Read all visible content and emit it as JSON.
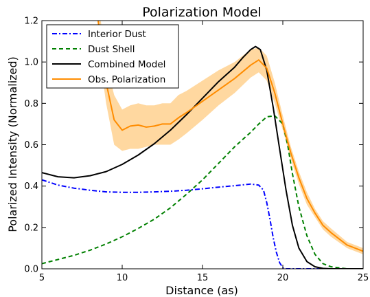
{
  "chart_data": {
    "type": "line",
    "title": "Polarization Model",
    "xlabel": "Distance (as)",
    "ylabel": "Polarized Intensity (Normalized)",
    "xlim": [
      5,
      25
    ],
    "ylim": [
      0,
      1.2
    ],
    "xticks": [
      5,
      10,
      15,
      20,
      25
    ],
    "yticks": [
      0.0,
      0.2,
      0.4,
      0.6,
      0.8,
      1.0,
      1.2
    ],
    "xtick_labels": [
      "5",
      "10",
      "15",
      "20",
      "25"
    ],
    "ytick_labels": [
      "0.0",
      "0.2",
      "0.4",
      "0.6",
      "0.8",
      "1.0",
      "1.2"
    ],
    "grid": false,
    "legend_position": "top-left",
    "series": [
      {
        "name": "Interior Dust",
        "color": "#0000ff",
        "style": "dashdot",
        "x": [
          5,
          6,
          7,
          8,
          9,
          10,
          11,
          12,
          13,
          14,
          15,
          16,
          17,
          18,
          18.5,
          18.8,
          19.0,
          19.2,
          19.4,
          19.6,
          19.8,
          20.0,
          20.2,
          20.5,
          21,
          22,
          23,
          24,
          25
        ],
        "y": [
          0.43,
          0.405,
          0.39,
          0.38,
          0.372,
          0.37,
          0.37,
          0.372,
          0.375,
          0.38,
          0.387,
          0.395,
          0.402,
          0.41,
          0.405,
          0.38,
          0.32,
          0.24,
          0.15,
          0.08,
          0.03,
          0.005,
          0.0,
          0.0,
          0.0,
          0.0,
          0.0,
          0.0,
          0.0
        ]
      },
      {
        "name": "Dust Shell",
        "color": "#008000",
        "style": "dashed",
        "x": [
          5,
          6,
          7,
          8,
          9,
          10,
          11,
          12,
          13,
          14,
          15,
          16,
          17,
          18,
          18.5,
          19,
          19.5,
          20,
          20.3,
          20.6,
          21,
          21.5,
          22,
          22.5,
          23,
          24,
          25
        ],
        "y": [
          0.025,
          0.045,
          0.065,
          0.09,
          0.12,
          0.155,
          0.195,
          0.24,
          0.295,
          0.36,
          0.43,
          0.51,
          0.59,
          0.66,
          0.7,
          0.735,
          0.74,
          0.7,
          0.6,
          0.46,
          0.3,
          0.16,
          0.07,
          0.025,
          0.01,
          0.0,
          0.0
        ]
      },
      {
        "name": "Combined Model",
        "color": "#000000",
        "style": "solid",
        "x": [
          5,
          6,
          7,
          8,
          9,
          10,
          11,
          12,
          13,
          14,
          15,
          16,
          17,
          17.5,
          18,
          18.3,
          18.6,
          19,
          19.4,
          19.8,
          20.2,
          20.6,
          21,
          21.5,
          22,
          22.5,
          23,
          24,
          25
        ],
        "y": [
          0.465,
          0.445,
          0.44,
          0.45,
          0.47,
          0.505,
          0.55,
          0.605,
          0.67,
          0.745,
          0.825,
          0.905,
          0.975,
          1.02,
          1.06,
          1.075,
          1.06,
          0.96,
          0.78,
          0.58,
          0.38,
          0.21,
          0.1,
          0.035,
          0.01,
          0.002,
          0.0,
          0.0,
          0.0
        ]
      },
      {
        "name": "Obs. Polarization",
        "color": "#ff8c00",
        "band_color": "#ffd8a0",
        "style": "solid",
        "x": [
          8.5,
          9,
          9.5,
          10,
          10.5,
          11,
          11.5,
          12,
          12.5,
          13,
          13.5,
          14,
          15,
          16,
          17,
          18,
          18.5,
          19,
          19.5,
          20,
          20.5,
          21,
          21.5,
          22,
          22.5,
          23,
          24,
          25
        ],
        "y": [
          1.2,
          0.9,
          0.72,
          0.67,
          0.69,
          0.695,
          0.685,
          0.69,
          0.7,
          0.7,
          0.73,
          0.755,
          0.81,
          0.865,
          0.92,
          0.985,
          1.01,
          0.97,
          0.85,
          0.7,
          0.56,
          0.44,
          0.34,
          0.27,
          0.21,
          0.175,
          0.115,
          0.085
        ],
        "y_lower": [
          1.08,
          0.8,
          0.6,
          0.57,
          0.58,
          0.58,
          0.59,
          0.6,
          0.6,
          0.6,
          0.625,
          0.655,
          0.72,
          0.79,
          0.85,
          0.925,
          0.95,
          0.91,
          0.8,
          0.67,
          0.53,
          0.41,
          0.31,
          0.25,
          0.19,
          0.155,
          0.1,
          0.07
        ],
        "y_upper": [
          1.3,
          1.0,
          0.84,
          0.77,
          0.79,
          0.8,
          0.79,
          0.79,
          0.8,
          0.8,
          0.84,
          0.86,
          0.91,
          0.96,
          1.0,
          1.06,
          1.07,
          1.03,
          0.9,
          0.74,
          0.59,
          0.47,
          0.37,
          0.29,
          0.23,
          0.195,
          0.13,
          0.1
        ]
      }
    ]
  }
}
